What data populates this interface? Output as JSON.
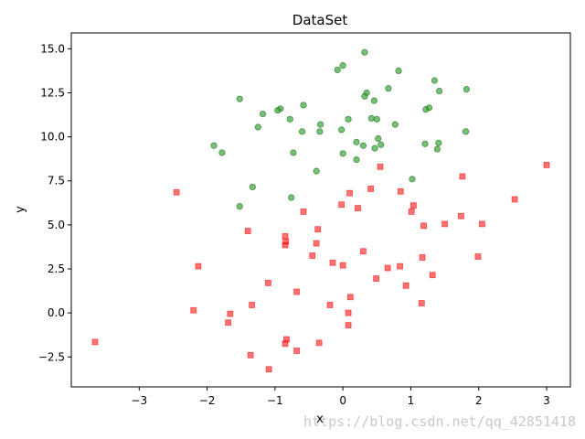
{
  "chart_data": {
    "type": "scatter",
    "title": "DataSet",
    "xlabel": "x",
    "ylabel": "y",
    "xlim": [
      -4.0,
      3.35
    ],
    "ylim": [
      -4.2,
      15.9
    ],
    "xticks": [
      -3,
      -2,
      -1,
      0,
      1,
      2,
      3
    ],
    "yticks": [
      -2.5,
      0.0,
      2.5,
      5.0,
      7.5,
      10.0,
      12.5,
      15.0
    ],
    "grid": false,
    "series": [
      {
        "marker": "circle",
        "color": "#2ca02c",
        "points": [
          [
            0.32,
            14.8
          ],
          [
            0.0,
            14.05
          ],
          [
            -0.08,
            13.8
          ],
          [
            0.82,
            13.75
          ],
          [
            1.35,
            13.2
          ],
          [
            0.35,
            12.5
          ],
          [
            0.32,
            12.3
          ],
          [
            0.67,
            12.75
          ],
          [
            1.42,
            12.6
          ],
          [
            1.82,
            12.7
          ],
          [
            -1.52,
            12.15
          ],
          [
            0.46,
            12.05
          ],
          [
            -0.58,
            11.8
          ],
          [
            -0.92,
            11.6
          ],
          [
            -0.96,
            11.5
          ],
          [
            -1.18,
            11.3
          ],
          [
            1.27,
            11.65
          ],
          [
            1.22,
            11.55
          ],
          [
            -0.78,
            11.0
          ],
          [
            0.08,
            11.0
          ],
          [
            0.42,
            11.05
          ],
          [
            0.5,
            11.0
          ],
          [
            -0.33,
            10.7
          ],
          [
            0.77,
            10.7
          ],
          [
            -1.25,
            10.55
          ],
          [
            -0.02,
            10.4
          ],
          [
            -0.34,
            10.3
          ],
          [
            -0.6,
            10.3
          ],
          [
            1.81,
            10.3
          ],
          [
            0.52,
            9.9
          ],
          [
            0.2,
            9.7
          ],
          [
            0.3,
            9.5
          ],
          [
            -1.9,
            9.5
          ],
          [
            0.56,
            9.55
          ],
          [
            1.21,
            9.6
          ],
          [
            1.41,
            9.65
          ],
          [
            0.47,
            9.35
          ],
          [
            1.39,
            9.3
          ],
          [
            -1.78,
            9.1
          ],
          [
            -0.73,
            9.1
          ],
          [
            0.0,
            9.05
          ],
          [
            0.2,
            8.7
          ],
          [
            -0.39,
            8.05
          ],
          [
            1.02,
            7.6
          ],
          [
            -1.33,
            7.15
          ],
          [
            -0.76,
            6.55
          ],
          [
            -1.52,
            6.05
          ]
        ]
      },
      {
        "marker": "square",
        "color": "#ff0000",
        "points": [
          [
            3.0,
            8.4
          ],
          [
            0.55,
            8.3
          ],
          [
            1.76,
            7.75
          ],
          [
            0.41,
            7.05
          ],
          [
            0.85,
            6.9
          ],
          [
            -2.45,
            6.85
          ],
          [
            0.1,
            6.8
          ],
          [
            2.53,
            6.45
          ],
          [
            1.04,
            6.1
          ],
          [
            -0.02,
            6.15
          ],
          [
            0.22,
            5.95
          ],
          [
            1.01,
            5.75
          ],
          [
            -0.58,
            5.75
          ],
          [
            1.74,
            5.5
          ],
          [
            1.5,
            5.05
          ],
          [
            2.05,
            5.05
          ],
          [
            1.19,
            4.95
          ],
          [
            -0.37,
            4.75
          ],
          [
            -1.4,
            4.65
          ],
          [
            -0.85,
            4.35
          ],
          [
            -0.84,
            4.05
          ],
          [
            -0.85,
            3.85
          ],
          [
            -0.39,
            3.95
          ],
          [
            0.3,
            3.5
          ],
          [
            -0.45,
            3.25
          ],
          [
            1.99,
            3.2
          ],
          [
            1.17,
            3.15
          ],
          [
            -0.15,
            2.85
          ],
          [
            0.0,
            2.7
          ],
          [
            0.84,
            2.65
          ],
          [
            0.66,
            2.55
          ],
          [
            -2.13,
            2.65
          ],
          [
            1.32,
            2.15
          ],
          [
            0.49,
            1.95
          ],
          [
            -1.1,
            1.7
          ],
          [
            0.93,
            1.55
          ],
          [
            -0.68,
            1.2
          ],
          [
            0.11,
            0.9
          ],
          [
            1.16,
            0.55
          ],
          [
            -0.19,
            0.45
          ],
          [
            -1.34,
            0.45
          ],
          [
            -2.2,
            0.15
          ],
          [
            -1.66,
            -0.05
          ],
          [
            0.08,
            0.0
          ],
          [
            -1.69,
            -0.55
          ],
          [
            0.08,
            -0.7
          ],
          [
            -3.65,
            -1.65
          ],
          [
            -0.83,
            -1.5
          ],
          [
            -0.85,
            -1.75
          ],
          [
            -0.35,
            -1.7
          ],
          [
            -0.68,
            -2.15
          ],
          [
            -1.36,
            -2.4
          ],
          [
            -1.09,
            -3.2
          ]
        ]
      }
    ]
  },
  "watermark": "https://blog.csdn.net/qq_42851418"
}
